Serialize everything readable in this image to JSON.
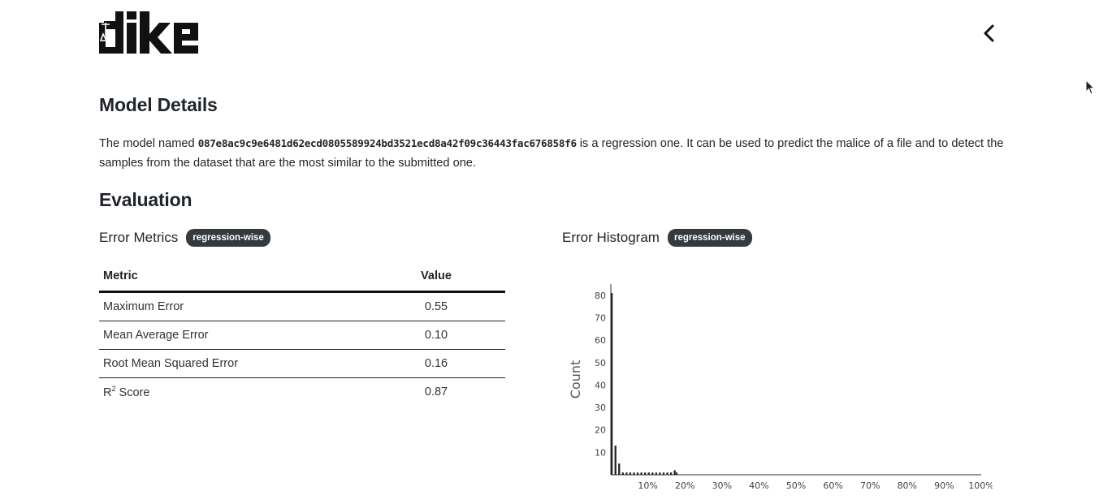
{
  "header": {
    "logo_text": "dike",
    "back_icon": "chevron-left-icon"
  },
  "model_details": {
    "title": "Model Details",
    "description_prefix": "The model named ",
    "model_id": "087e8ac9c9e6481d62ecd0805589924bd3521ecd8a42f09c36443fac676858f6",
    "description_suffix": " is a regression one. It can be used to predict the malice of a file and to detect the samples from the dataset that are the most similar to the submitted one."
  },
  "evaluation": {
    "title": "Evaluation",
    "error_metrics": {
      "title": "Error Metrics",
      "badge": "regression-wise",
      "columns": [
        "Metric",
        "Value"
      ],
      "rows": [
        {
          "metric": "Maximum Error",
          "value": "0.55"
        },
        {
          "metric": "Mean Average Error",
          "value": "0.10"
        },
        {
          "metric": "Root Mean Squared Error",
          "value": "0.16"
        },
        {
          "metric_base": "R",
          "metric_sup": "2",
          "metric_rest": " Score",
          "value": "0.87"
        }
      ]
    },
    "error_histogram": {
      "title": "Error Histogram",
      "badge": "regression-wise"
    }
  },
  "chart_data": {
    "type": "bar",
    "title": "",
    "xlabel": "",
    "ylabel": "Count",
    "xlim": [
      0,
      100
    ],
    "ylim": [
      0,
      85
    ],
    "x_ticks": [
      "10%",
      "20%",
      "30%",
      "40%",
      "50%",
      "60%",
      "70%",
      "80%",
      "90%",
      "100%"
    ],
    "y_ticks": [
      10,
      20,
      30,
      40,
      50,
      60,
      70,
      80
    ],
    "bin_width_percent": 0.5,
    "bins": [
      {
        "x": 0,
        "count": 81
      },
      {
        "x": 1,
        "count": 13
      },
      {
        "x": 2,
        "count": 5
      },
      {
        "x": 3,
        "count": 1
      },
      {
        "x": 4,
        "count": 1
      },
      {
        "x": 5,
        "count": 1
      },
      {
        "x": 6,
        "count": 1
      },
      {
        "x": 7,
        "count": 1
      },
      {
        "x": 8,
        "count": 1
      },
      {
        "x": 9,
        "count": 1
      },
      {
        "x": 10,
        "count": 1
      },
      {
        "x": 11,
        "count": 1
      },
      {
        "x": 12,
        "count": 1
      },
      {
        "x": 13,
        "count": 1
      },
      {
        "x": 14,
        "count": 1
      },
      {
        "x": 15,
        "count": 1
      },
      {
        "x": 16,
        "count": 1
      },
      {
        "x": 17,
        "count": 2
      },
      {
        "x": 17.5,
        "count": 1
      }
    ],
    "grid": false,
    "bar_color": "#222222"
  }
}
